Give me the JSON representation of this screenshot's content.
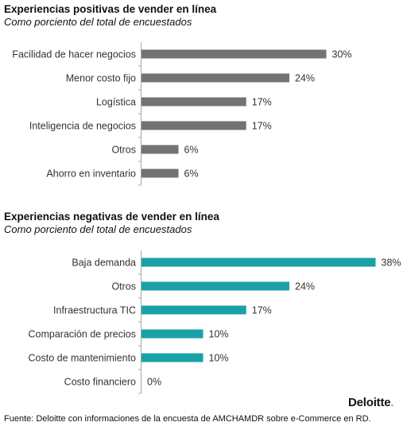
{
  "chart_data": [
    {
      "type": "bar",
      "orientation": "horizontal",
      "title": "Experiencias positivas de vender en línea",
      "subtitle": "Como porciento del total de encuestados",
      "categories": [
        "Facilidad de hacer negocios",
        "Menor costo fijo",
        "Logística",
        "Inteligencia de negocios",
        "Otros",
        "Ahorro en inventario"
      ],
      "values": [
        30,
        24,
        17,
        17,
        6,
        6
      ],
      "value_labels": [
        "30%",
        "24%",
        "17%",
        "17%",
        "6%",
        "6%"
      ],
      "xlim": [
        0,
        40
      ],
      "bar_color": "#737373",
      "grid": false
    },
    {
      "type": "bar",
      "orientation": "horizontal",
      "title": "Experiencias negativas de vender en línea",
      "subtitle": "Como porciento del total de encuestados",
      "categories": [
        "Baja demanda",
        "Otros",
        "Infraestructura TIC",
        "Comparación de precios",
        "Costo de mantenimiento",
        "Costo financiero"
      ],
      "values": [
        38,
        24,
        17,
        10,
        10,
        0
      ],
      "value_labels": [
        "38%",
        "24%",
        "17%",
        "10%",
        "10%",
        "0%"
      ],
      "xlim": [
        0,
        40
      ],
      "bar_color": "#1aa1a6",
      "grid": false
    }
  ],
  "source": "Fuente: Deloitte con informaciones de la encuesta de AMCHAMDR sobre e-Commerce en RD.",
  "logo": {
    "text": "Deloitte",
    "dot": ".",
    "dot_color": "#86bc25"
  }
}
